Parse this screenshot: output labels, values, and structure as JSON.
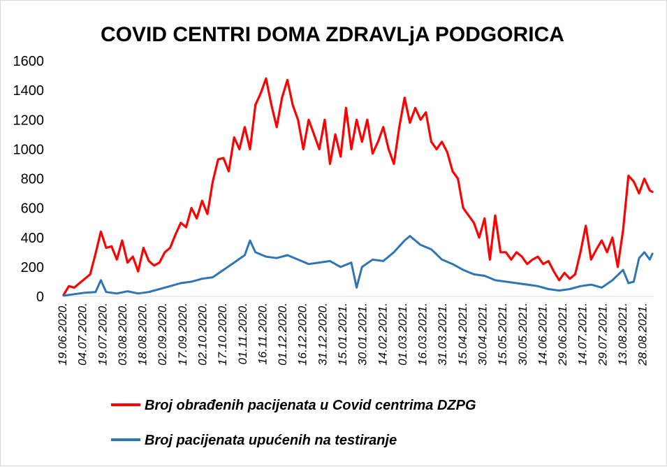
{
  "chart_data": {
    "type": "line",
    "title": "COVID  CENTRI  DOMA  ZDRAVLjA  PODGORICA",
    "ylim": [
      0,
      1600
    ],
    "y_ticks": [
      "0",
      "200",
      "400",
      "600",
      "800",
      "1000",
      "1200",
      "1400",
      "1600"
    ],
    "x_range": [
      "2020-06-19",
      "2021-09-05"
    ],
    "x_tick_labels": [
      "19.06.2020.",
      "04.07.2020.",
      "19.07.2020.",
      "03.08.2020.",
      "18.08.2020.",
      "02.09.2020.",
      "17.09.2020.",
      "02.10.2020.",
      "17.10.2020.",
      "01.11.2020.",
      "16.11.2020.",
      "01.12.2020.",
      "16.12.2020.",
      "31.12.2020.",
      "15.01.2021.",
      "30.01.2021.",
      "14.02.2021.",
      "01.03.2021.",
      "16.03.2021.",
      "31.03.2021.",
      "15.04.2021.",
      "30.04.2021.",
      "15.05.2021.",
      "30.05.2021.",
      "14.06.2021.",
      "29.06.2021.",
      "14.07.2021.",
      "29.07.2021.",
      "13.08.2021.",
      "28.08.2021."
    ],
    "grid": false,
    "legend_position": "bottom",
    "series": [
      {
        "name": "Broj obrađenih pacijenata u Covid centrima DZPG",
        "color": "#ff0000",
        "x": [
          "2020-06-19",
          "2020-06-23",
          "2020-06-27",
          "2020-07-01",
          "2020-07-05",
          "2020-07-09",
          "2020-07-13",
          "2020-07-17",
          "2020-07-21",
          "2020-07-25",
          "2020-07-29",
          "2020-08-02",
          "2020-08-06",
          "2020-08-10",
          "2020-08-14",
          "2020-08-18",
          "2020-08-22",
          "2020-08-26",
          "2020-08-30",
          "2020-09-03",
          "2020-09-07",
          "2020-09-11",
          "2020-09-15",
          "2020-09-19",
          "2020-09-23",
          "2020-09-27",
          "2020-10-01",
          "2020-10-05",
          "2020-10-09",
          "2020-10-13",
          "2020-10-17",
          "2020-10-21",
          "2020-10-25",
          "2020-10-29",
          "2020-11-02",
          "2020-11-06",
          "2020-11-10",
          "2020-11-14",
          "2020-11-18",
          "2020-11-22",
          "2020-11-26",
          "2020-11-30",
          "2020-12-04",
          "2020-12-08",
          "2020-12-12",
          "2020-12-16",
          "2020-12-20",
          "2020-12-24",
          "2020-12-28",
          "2021-01-01",
          "2021-01-05",
          "2021-01-09",
          "2021-01-13",
          "2021-01-17",
          "2021-01-21",
          "2021-01-25",
          "2021-01-29",
          "2021-02-02",
          "2021-02-06",
          "2021-02-10",
          "2021-02-14",
          "2021-02-18",
          "2021-02-22",
          "2021-02-26",
          "2021-03-02",
          "2021-03-06",
          "2021-03-10",
          "2021-03-14",
          "2021-03-18",
          "2021-03-22",
          "2021-03-26",
          "2021-03-30",
          "2021-04-03",
          "2021-04-07",
          "2021-04-11",
          "2021-04-15",
          "2021-04-19",
          "2021-04-23",
          "2021-04-27",
          "2021-05-01",
          "2021-05-05",
          "2021-05-09",
          "2021-05-13",
          "2021-05-17",
          "2021-05-21",
          "2021-05-25",
          "2021-05-29",
          "2021-06-02",
          "2021-06-06",
          "2021-06-10",
          "2021-06-14",
          "2021-06-18",
          "2021-06-22",
          "2021-06-26",
          "2021-06-30",
          "2021-07-04",
          "2021-07-08",
          "2021-07-12",
          "2021-07-16",
          "2021-07-20",
          "2021-07-24",
          "2021-07-28",
          "2021-08-01",
          "2021-08-05",
          "2021-08-09",
          "2021-08-13",
          "2021-08-17",
          "2021-08-21",
          "2021-08-25",
          "2021-08-29",
          "2021-09-02",
          "2021-09-04"
        ],
        "values": [
          10,
          70,
          60,
          90,
          120,
          150,
          290,
          440,
          330,
          340,
          250,
          380,
          230,
          270,
          170,
          330,
          240,
          210,
          230,
          300,
          330,
          420,
          500,
          470,
          600,
          530,
          650,
          560,
          780,
          930,
          940,
          850,
          1080,
          1000,
          1150,
          1000,
          1300,
          1380,
          1480,
          1300,
          1150,
          1350,
          1470,
          1300,
          1200,
          1000,
          1200,
          1100,
          1000,
          1200,
          900,
          1100,
          950,
          1280,
          1000,
          1200,
          1050,
          1200,
          970,
          1050,
          1150,
          1000,
          900,
          1150,
          1350,
          1180,
          1280,
          1200,
          1250,
          1050,
          1000,
          1050,
          980,
          850,
          800,
          600,
          550,
          500,
          400,
          530,
          250,
          550,
          300,
          300,
          250,
          300,
          270,
          220,
          250,
          270,
          220,
          240,
          170,
          110,
          160,
          120,
          150,
          300,
          480,
          250,
          320,
          380,
          300,
          400,
          200,
          450,
          820,
          780,
          700,
          800,
          720,
          710
        ]
      },
      {
        "name": "Broj pacijenata upućenih na testiranje",
        "color": "#2e75b6",
        "x": [
          "2020-06-19",
          "2020-06-27",
          "2020-07-05",
          "2020-07-13",
          "2020-07-17",
          "2020-07-21",
          "2020-07-29",
          "2020-08-06",
          "2020-08-14",
          "2020-08-22",
          "2020-08-30",
          "2020-09-07",
          "2020-09-15",
          "2020-09-23",
          "2020-10-01",
          "2020-10-09",
          "2020-10-17",
          "2020-10-25",
          "2020-11-02",
          "2020-11-06",
          "2020-11-10",
          "2020-11-18",
          "2020-11-26",
          "2020-12-04",
          "2020-12-12",
          "2020-12-20",
          "2020-12-28",
          "2021-01-05",
          "2021-01-13",
          "2021-01-21",
          "2021-01-25",
          "2021-01-29",
          "2021-02-06",
          "2021-02-14",
          "2021-02-22",
          "2021-03-02",
          "2021-03-06",
          "2021-03-14",
          "2021-03-22",
          "2021-03-30",
          "2021-04-07",
          "2021-04-15",
          "2021-04-23",
          "2021-05-01",
          "2021-05-09",
          "2021-05-17",
          "2021-05-25",
          "2021-06-02",
          "2021-06-10",
          "2021-06-18",
          "2021-06-26",
          "2021-07-04",
          "2021-07-12",
          "2021-07-20",
          "2021-07-28",
          "2021-08-05",
          "2021-08-13",
          "2021-08-17",
          "2021-08-21",
          "2021-08-25",
          "2021-08-29",
          "2021-09-02",
          "2021-09-04"
        ],
        "values": [
          5,
          15,
          25,
          30,
          110,
          30,
          20,
          35,
          20,
          30,
          50,
          70,
          90,
          100,
          120,
          130,
          180,
          230,
          280,
          380,
          300,
          270,
          260,
          280,
          250,
          220,
          230,
          240,
          200,
          230,
          60,
          200,
          250,
          240,
          300,
          380,
          410,
          350,
          320,
          250,
          220,
          180,
          150,
          140,
          110,
          100,
          90,
          80,
          70,
          50,
          40,
          50,
          70,
          80,
          60,
          110,
          180,
          90,
          100,
          260,
          300,
          250,
          290
        ]
      }
    ]
  }
}
